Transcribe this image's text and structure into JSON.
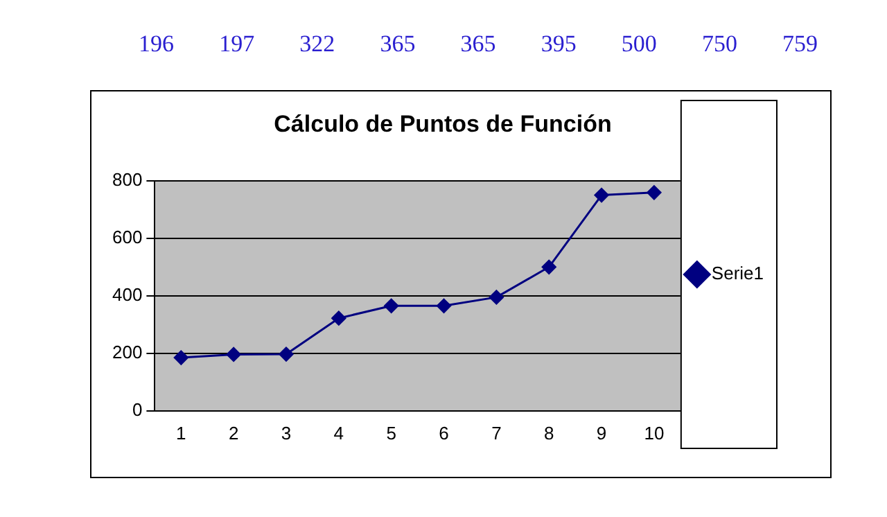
{
  "chart_data": {
    "type": "line",
    "title": "Cálculo de Puntos de Función",
    "categories": [
      "1",
      "2",
      "3",
      "4",
      "5",
      "6",
      "7",
      "8",
      "9",
      "10"
    ],
    "series": [
      {
        "name": "Serie1",
        "color": "#000080",
        "values": [
          185,
          196,
          197,
          322,
          365,
          365,
          395,
          500,
          750,
          759
        ]
      }
    ],
    "ylim": [
      0,
      800
    ],
    "yticks": [
      0,
      200,
      400,
      600,
      800
    ],
    "grid": "y",
    "legend": "right",
    "marker": "diamond",
    "line_style": "solid",
    "annotations": [
      "196",
      "197",
      "322",
      "365",
      "365",
      "395",
      "500",
      "750",
      "759"
    ]
  }
}
